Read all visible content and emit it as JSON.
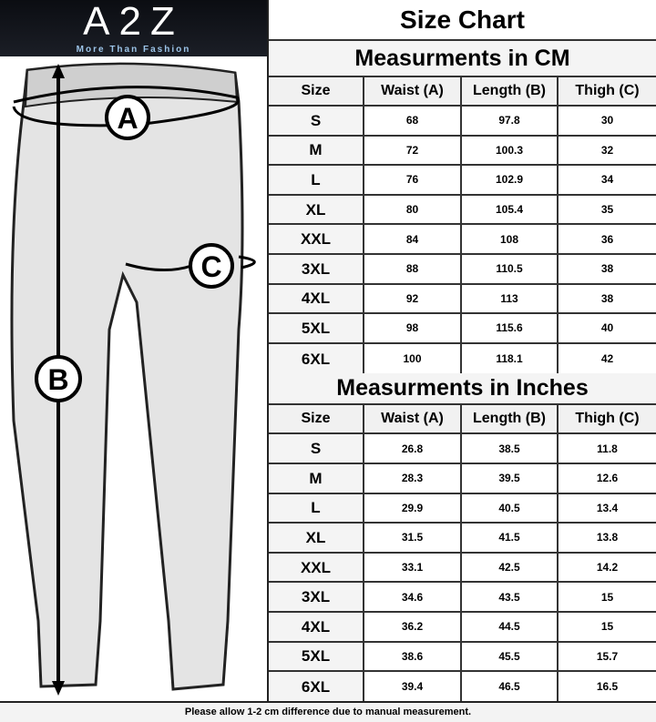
{
  "brand": {
    "logo": "A2Z",
    "tagline": "More Than Fashion"
  },
  "diagram": {
    "labels": {
      "a": "A",
      "b": "B",
      "c": "C"
    }
  },
  "chart": {
    "title": "Size Chart",
    "cm": {
      "heading": "Measurments in CM",
      "columns": [
        "Size",
        "Waist (A)",
        "Length (B)",
        "Thigh (C)"
      ],
      "rows": [
        [
          "S",
          "68",
          "97.8",
          "30"
        ],
        [
          "M",
          "72",
          "100.3",
          "32"
        ],
        [
          "L",
          "76",
          "102.9",
          "34"
        ],
        [
          "XL",
          "80",
          "105.4",
          "35"
        ],
        [
          "XXL",
          "84",
          "108",
          "36"
        ],
        [
          "3XL",
          "88",
          "110.5",
          "38"
        ],
        [
          "4XL",
          "92",
          "113",
          "38"
        ],
        [
          "5XL",
          "98",
          "115.6",
          "40"
        ],
        [
          "6XL",
          "100",
          "118.1",
          "42"
        ]
      ]
    },
    "inches": {
      "heading": "Measurments in Inches",
      "columns": [
        "Size",
        "Waist (A)",
        "Length (B)",
        "Thigh (C)"
      ],
      "rows": [
        [
          "S",
          "26.8",
          "38.5",
          "11.8"
        ],
        [
          "M",
          "28.3",
          "39.5",
          "12.6"
        ],
        [
          "L",
          "29.9",
          "40.5",
          "13.4"
        ],
        [
          "XL",
          "31.5",
          "41.5",
          "13.8"
        ],
        [
          "XXL",
          "33.1",
          "42.5",
          "14.2"
        ],
        [
          "3XL",
          "34.6",
          "43.5",
          "15"
        ],
        [
          "4XL",
          "36.2",
          "44.5",
          "15"
        ],
        [
          "5XL",
          "38.6",
          "45.5",
          "15.7"
        ],
        [
          "6XL",
          "39.4",
          "46.5",
          "16.5"
        ]
      ]
    }
  },
  "footer": "Please allow 1-2 cm difference due to manual measurement."
}
